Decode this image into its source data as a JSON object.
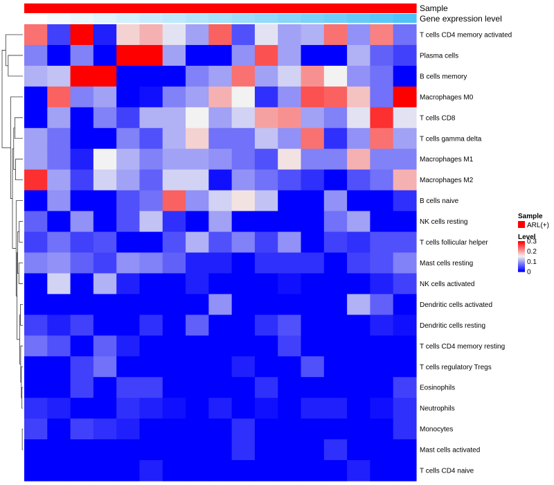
{
  "chart_data": {
    "type": "heatmap",
    "title": "",
    "columns": 17,
    "top_annotations": [
      {
        "name": "Sample",
        "type": "categorical",
        "values": [
          "ARL(+)",
          "ARL(+)",
          "ARL(+)",
          "ARL(+)",
          "ARL(+)",
          "ARL(+)",
          "ARL(+)",
          "ARL(+)",
          "ARL(+)",
          "ARL(+)",
          "ARL(+)",
          "ARL(+)",
          "ARL(+)",
          "ARL(+)",
          "ARL(+)",
          "ARL(+)",
          "ARL(+)"
        ]
      },
      {
        "name": "Gene expression level",
        "type": "continuous",
        "values": [
          0.0,
          0.06,
          0.12,
          0.18,
          0.25,
          0.31,
          0.37,
          0.43,
          0.5,
          0.56,
          0.62,
          0.68,
          0.75,
          0.81,
          0.87,
          0.93,
          1.0
        ]
      }
    ],
    "rows": [
      {
        "name": "T cells CD4 memory activated",
        "values": [
          0.23,
          0.04,
          0.3,
          0.02,
          0.17,
          0.19,
          0.14,
          0.1,
          0.24,
          0.05,
          0.14,
          0.1,
          0.11,
          0.23,
          0.09,
          0.22,
          0.07
        ]
      },
      {
        "name": "Plasma cells",
        "values": [
          0.08,
          0.0,
          0.08,
          0.0,
          0.3,
          0.3,
          0.1,
          0.0,
          0.0,
          0.09,
          0.25,
          0.1,
          0.0,
          0.0,
          0.11,
          0.06,
          0.04
        ]
      },
      {
        "name": "B cells memory",
        "values": [
          0.11,
          0.12,
          0.3,
          0.3,
          0.0,
          0.0,
          0.0,
          0.08,
          0.1,
          0.23,
          0.1,
          0.13,
          0.21,
          0.15,
          0.09,
          0.07,
          0.0
        ]
      },
      {
        "name": "Macrophages M0",
        "values": [
          0.0,
          0.24,
          0.08,
          0.1,
          0.0,
          0.01,
          0.08,
          0.1,
          0.19,
          0.15,
          0.03,
          0.09,
          0.25,
          0.24,
          0.18,
          0.07,
          0.3
        ]
      },
      {
        "name": "T cells CD8",
        "values": [
          0.0,
          0.1,
          0.0,
          0.08,
          0.04,
          0.11,
          0.11,
          0.15,
          0.1,
          0.13,
          0.2,
          0.21,
          0.1,
          0.08,
          0.14,
          0.27,
          0.14
        ]
      },
      {
        "name": "T cells gamma delta",
        "values": [
          0.1,
          0.07,
          0.0,
          0.0,
          0.08,
          0.05,
          0.11,
          0.17,
          0.07,
          0.07,
          0.12,
          0.09,
          0.23,
          0.03,
          0.09,
          0.23,
          0.1
        ]
      },
      {
        "name": "Macrophages M1",
        "values": [
          0.1,
          0.07,
          0.02,
          0.15,
          0.11,
          0.08,
          0.1,
          0.1,
          0.09,
          0.07,
          0.05,
          0.16,
          0.08,
          0.08,
          0.19,
          0.08,
          0.08
        ]
      },
      {
        "name": "Macrophages M2",
        "values": [
          0.27,
          0.1,
          0.04,
          0.13,
          0.1,
          0.06,
          0.13,
          0.13,
          0.01,
          0.09,
          0.07,
          0.05,
          0.03,
          0.0,
          0.05,
          0.07,
          0.19
        ]
      },
      {
        "name": "B cells naive",
        "values": [
          0.0,
          0.09,
          0.0,
          0.0,
          0.05,
          0.07,
          0.24,
          0.09,
          0.13,
          0.16,
          0.12,
          0.0,
          0.0,
          0.09,
          0.0,
          0.0,
          0.03
        ]
      },
      {
        "name": "NK cells resting",
        "values": [
          0.06,
          0.0,
          0.09,
          0.0,
          0.05,
          0.12,
          0.03,
          0.0,
          0.1,
          0.0,
          0.0,
          0.0,
          0.0,
          0.07,
          0.1,
          0.0,
          0.0
        ]
      },
      {
        "name": "T cells follicular helper",
        "values": [
          0.04,
          0.07,
          0.04,
          0.05,
          0.0,
          0.0,
          0.05,
          0.11,
          0.05,
          0.08,
          0.04,
          0.09,
          0.0,
          0.04,
          0.03,
          0.05,
          0.05
        ]
      },
      {
        "name": "Mast cells resting",
        "values": [
          0.08,
          0.09,
          0.06,
          0.04,
          0.09,
          0.08,
          0.06,
          0.02,
          0.02,
          0.0,
          0.03,
          0.03,
          0.03,
          0.0,
          0.04,
          0.05,
          0.08
        ]
      },
      {
        "name": "NK cells activated",
        "values": [
          0.0,
          0.13,
          0.0,
          0.11,
          0.02,
          0.0,
          0.0,
          0.02,
          0.0,
          0.0,
          0.0,
          0.01,
          0.0,
          0.0,
          0.0,
          0.02,
          0.04
        ]
      },
      {
        "name": "Dendritic cells activated",
        "values": [
          0.0,
          0.0,
          0.0,
          0.0,
          0.0,
          0.0,
          0.0,
          0.0,
          0.09,
          0.0,
          0.0,
          0.0,
          0.0,
          0.0,
          0.11,
          0.06,
          0.0
        ]
      },
      {
        "name": "Dendritic cells resting",
        "values": [
          0.04,
          0.02,
          0.04,
          0.0,
          0.0,
          0.03,
          0.0,
          0.06,
          0.0,
          0.0,
          0.03,
          0.05,
          0.0,
          0.0,
          0.0,
          0.02,
          0.01
        ]
      },
      {
        "name": "T cells CD4 memory resting",
        "values": [
          0.07,
          0.05,
          0.0,
          0.06,
          0.02,
          0.0,
          0.0,
          0.0,
          0.0,
          0.0,
          0.0,
          0.04,
          0.0,
          0.0,
          0.0,
          0.0,
          0.0
        ]
      },
      {
        "name": "T cells regulatory  Tregs",
        "values": [
          0.0,
          0.0,
          0.04,
          0.07,
          0.0,
          0.0,
          0.0,
          0.0,
          0.0,
          0.02,
          0.0,
          0.0,
          0.05,
          0.0,
          0.0,
          0.0,
          0.0
        ]
      },
      {
        "name": "Eosinophils",
        "values": [
          0.0,
          0.0,
          0.04,
          0.0,
          0.04,
          0.04,
          0.0,
          0.0,
          0.0,
          0.0,
          0.03,
          0.0,
          0.0,
          0.0,
          0.0,
          0.0,
          0.04
        ]
      },
      {
        "name": "Neutrophils",
        "values": [
          0.03,
          0.02,
          0.0,
          0.0,
          0.03,
          0.02,
          0.01,
          0.0,
          0.02,
          0.0,
          0.01,
          0.0,
          0.02,
          0.02,
          0.0,
          0.01,
          0.03
        ]
      },
      {
        "name": "Monocytes",
        "values": [
          0.04,
          0.0,
          0.04,
          0.03,
          0.02,
          0.0,
          0.0,
          0.0,
          0.0,
          0.03,
          0.0,
          0.0,
          0.0,
          0.0,
          0.0,
          0.0,
          0.03
        ]
      },
      {
        "name": "Mast cells activated",
        "values": [
          0.0,
          0.0,
          0.0,
          0.0,
          0.0,
          0.0,
          0.0,
          0.0,
          0.0,
          0.03,
          0.0,
          0.0,
          0.0,
          0.03,
          0.0,
          0.0,
          0.0
        ]
      },
      {
        "name": "T cells CD4 naive",
        "values": [
          0.0,
          0.0,
          0.0,
          0.0,
          0.0,
          0.02,
          0.0,
          0.0,
          0.0,
          0.0,
          0.0,
          0.0,
          0.0,
          0.0,
          0.02,
          0.0,
          0.0
        ]
      }
    ],
    "color_scale": {
      "min": 0,
      "max": 0.3,
      "low": "#0000ff",
      "mid": "#f2f2f2",
      "high": "#ff0000",
      "mid_value": 0.15
    },
    "gene_expression_scale": {
      "low": "#ffffff",
      "high": "#4fc3f7"
    },
    "legend": {
      "sample_title": "Sample",
      "sample_items": [
        {
          "label": "ARL(+)",
          "color": "#ff0000"
        }
      ],
      "level_title": "Level",
      "level_ticks": [
        {
          "value": 0.3,
          "label": "0.3"
        },
        {
          "value": 0.2,
          "label": "0.2"
        },
        {
          "value": 0.1,
          "label": "0.1"
        },
        {
          "value": 0,
          "label": "0"
        }
      ],
      "placement": "right"
    },
    "dendrogram": {
      "order": [
        0,
        1,
        2,
        3,
        4,
        5,
        6,
        7,
        8,
        9,
        10,
        11,
        12,
        13,
        14,
        15,
        16,
        17,
        18,
        19,
        20,
        21
      ],
      "merges": [
        [
          -20,
          -21,
          0.02
        ],
        [
          -18,
          -19,
          0.03
        ],
        [
          -17,
          2,
          0.05
        ],
        [
          -16,
          3,
          0.07
        ],
        [
          -14,
          -15,
          0.08
        ],
        [
          5,
          4,
          0.1
        ],
        [
          -12,
          -13,
          0.13
        ],
        [
          -10,
          -11,
          0.12
        ],
        [
          8,
          7,
          0.17
        ],
        [
          9,
          6,
          0.19
        ],
        [
          -9,
          10,
          0.22
        ],
        [
          -7,
          -8,
          0.24
        ],
        [
          -5,
          -6,
          0.26
        ],
        [
          12,
          13,
          0.3
        ],
        [
          14,
          11,
          0.34
        ],
        [
          -4,
          15,
          0.4
        ],
        [
          -2,
          -3,
          0.48
        ],
        [
          -1,
          17,
          0.56
        ],
        [
          18,
          16,
          0.68
        ]
      ]
    }
  }
}
